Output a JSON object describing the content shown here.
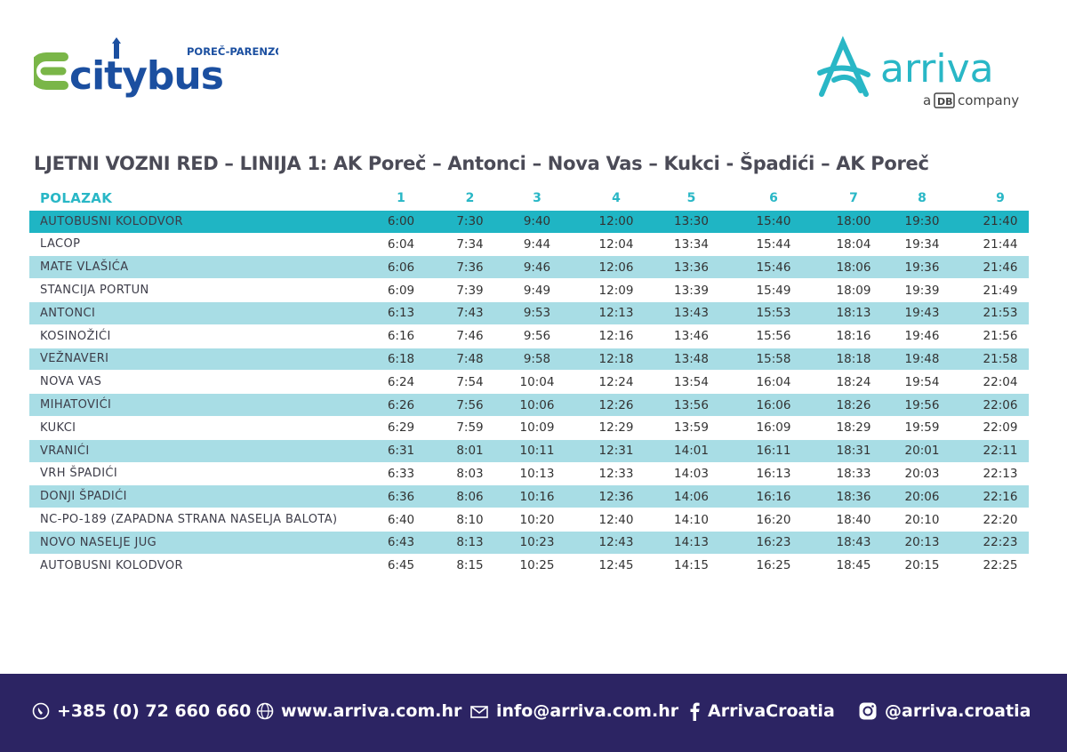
{
  "brand": {
    "citybus_name": "citybus",
    "citybus_tag": "POREČ-PARENZO",
    "arriva_name": "arriva",
    "arriva_sub_a": "a",
    "arriva_sub_db": "DB",
    "arriva_sub_company": "company",
    "colors": {
      "citybus_green": "#7ab648",
      "citybus_blue": "#1b4fa0",
      "arriva_teal": "#29b7c6",
      "footer_navy": "#2c2463"
    }
  },
  "title": "LJETNI VOZNI RED – LINIJA 1: AK Poreč – Antonci – Nova Vas – Kukci - Špadići – AK Poreč",
  "table": {
    "header_label": "POLAZAK",
    "departures": [
      "1",
      "2",
      "3",
      "4",
      "5",
      "6",
      "7",
      "8",
      "9"
    ],
    "rows": [
      {
        "stop": "AUTOBUSNI KOLODVOR",
        "times": [
          "6:00",
          "7:30",
          "9:40",
          "12:00",
          "13:30",
          "15:40",
          "18:00",
          "19:30",
          "21:40"
        ]
      },
      {
        "stop": "LACOP",
        "times": [
          "6:04",
          "7:34",
          "9:44",
          "12:04",
          "13:34",
          "15:44",
          "18:04",
          "19:34",
          "21:44"
        ]
      },
      {
        "stop": "MATE VLAŠIĆA",
        "times": [
          "6:06",
          "7:36",
          "9:46",
          "12:06",
          "13:36",
          "15:46",
          "18:06",
          "19:36",
          "21:46"
        ]
      },
      {
        "stop": "STANCIJA PORTUN",
        "times": [
          "6:09",
          "7:39",
          "9:49",
          "12:09",
          "13:39",
          "15:49",
          "18:09",
          "19:39",
          "21:49"
        ]
      },
      {
        "stop": "ANTONCI",
        "times": [
          "6:13",
          "7:43",
          "9:53",
          "12:13",
          "13:43",
          "15:53",
          "18:13",
          "19:43",
          "21:53"
        ]
      },
      {
        "stop": "KOSINOŽIĆI",
        "times": [
          "6:16",
          "7:46",
          "9:56",
          "12:16",
          "13:46",
          "15:56",
          "18:16",
          "19:46",
          "21:56"
        ]
      },
      {
        "stop": "VEŽNAVERI",
        "times": [
          "6:18",
          "7:48",
          "9:58",
          "12:18",
          "13:48",
          "15:58",
          "18:18",
          "19:48",
          "21:58"
        ]
      },
      {
        "stop": "NOVA VAS",
        "times": [
          "6:24",
          "7:54",
          "10:04",
          "12:24",
          "13:54",
          "16:04",
          "18:24",
          "19:54",
          "22:04"
        ]
      },
      {
        "stop": "MIHATOVIĆI",
        "times": [
          "6:26",
          "7:56",
          "10:06",
          "12:26",
          "13:56",
          "16:06",
          "18:26",
          "19:56",
          "22:06"
        ]
      },
      {
        "stop": "KUKCI",
        "times": [
          "6:29",
          "7:59",
          "10:09",
          "12:29",
          "13:59",
          "16:09",
          "18:29",
          "19:59",
          "22:09"
        ]
      },
      {
        "stop": "VRANIĆI",
        "times": [
          "6:31",
          "8:01",
          "10:11",
          "12:31",
          "14:01",
          "16:11",
          "18:31",
          "20:01",
          "22:11"
        ]
      },
      {
        "stop": "VRH ŠPADIĆI",
        "times": [
          "6:33",
          "8:03",
          "10:13",
          "12:33",
          "14:03",
          "16:13",
          "18:33",
          "20:03",
          "22:13"
        ]
      },
      {
        "stop": "DONJI ŠPADIĆI",
        "times": [
          "6:36",
          "8:06",
          "10:16",
          "12:36",
          "14:06",
          "16:16",
          "18:36",
          "20:06",
          "22:16"
        ]
      },
      {
        "stop": "NC-PO-189 (ZAPADNA STRANA NASELJA BALOTA)",
        "times": [
          "6:40",
          "8:10",
          "10:20",
          "12:40",
          "14:10",
          "16:20",
          "18:40",
          "20:10",
          "22:20"
        ]
      },
      {
        "stop": "NOVO NASELJE JUG",
        "times": [
          "6:43",
          "8:13",
          "10:23",
          "12:43",
          "14:13",
          "16:23",
          "18:43",
          "20:13",
          "22:23"
        ]
      },
      {
        "stop": "AUTOBUSNI KOLODVOR",
        "times": [
          "6:45",
          "8:15",
          "10:25",
          "12:45",
          "14:15",
          "16:25",
          "18:45",
          "20:15",
          "22:25"
        ]
      }
    ]
  },
  "footer": {
    "phone": "+385 (0) 72 660 660",
    "website": "www.arriva.com.hr",
    "email": "info@arriva.com.hr",
    "facebook": "ArrivaCroatia",
    "instagram": "@arriva.croatia"
  }
}
